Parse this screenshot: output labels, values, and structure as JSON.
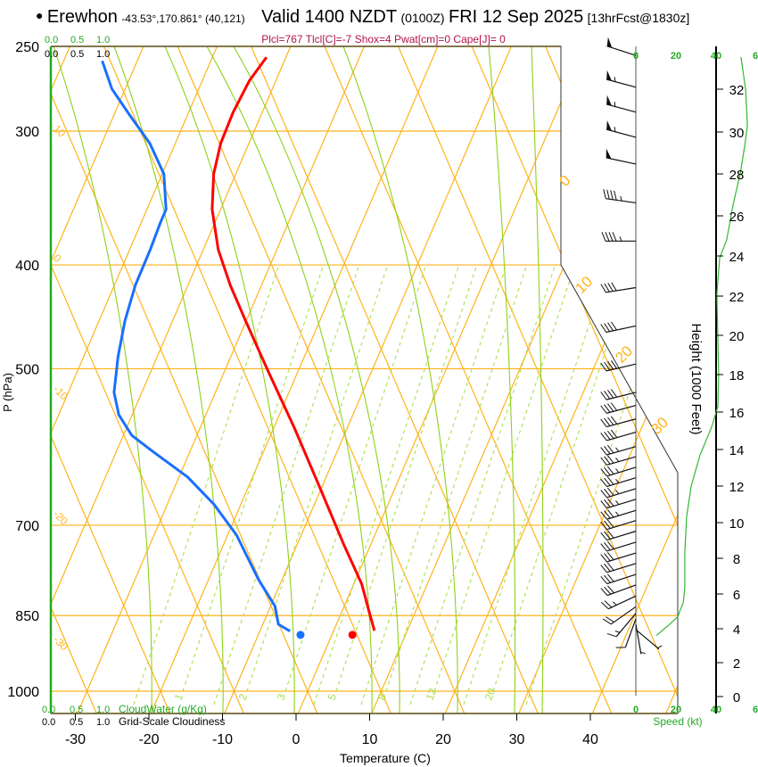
{
  "header": {
    "bullet": "●",
    "station": "Erewhon",
    "coords": "-43.53°,170.861° (40,121)",
    "valid": "Valid 1400 NZDT",
    "utc": "(0100Z)",
    "date": "FRI 12 Sep 2025",
    "forecast": "[13hrFcst@1830z]"
  },
  "stats": "Plcl=767 Tlcl[C]=-7 Shox=4 Pwat[cm]=0 Cape[J]= 0",
  "colors": {
    "temperature": "#ff0000",
    "dewpoint": "#1a6fff",
    "grid_orange": "#ffb31a",
    "moist_adiabat": "#8fd11a",
    "mixing_ratio": "#a8e04a",
    "speed": "#33b833",
    "stats": "#b0134e",
    "axis_green": "#22aa22"
  },
  "cloud_axis": {
    "water_ticks": [
      "0.0",
      "0.5",
      "1.0"
    ],
    "cloudiness_ticks": [
      "0.0",
      "0.5",
      "1.0"
    ],
    "water_label": "CloudWater (g/Kg)",
    "cloudiness_label": "Grid-Scale Cloudiness"
  },
  "chart_data": {
    "type": "line",
    "title": "Erewhon skew-T sounding, Valid 1400 NZDT FRI 12 Sep 2025",
    "xlabel": "Temperature (C)",
    "ylabel": "P (hPa)",
    "y2label": "Height (1000 Feet)",
    "speed_label": "Speed (kt)",
    "x_ticks": [
      "-30",
      "-20",
      "-10",
      "0",
      "10",
      "20",
      "30",
      "40"
    ],
    "x_tick_values": [
      -30,
      -20,
      -10,
      0,
      10,
      20,
      30,
      40
    ],
    "p_ticks": [
      "250",
      "300",
      "400",
      "500",
      "700",
      "850",
      "1000"
    ],
    "p_tick_values": [
      250,
      300,
      400,
      500,
      700,
      850,
      1000
    ],
    "ylim_hpa": [
      1050,
      250
    ],
    "height_ticks": [
      "0",
      "2",
      "4",
      "6",
      "8",
      "10",
      "12",
      "14",
      "16",
      "18",
      "20",
      "22",
      "24",
      "26",
      "28",
      "30",
      "32"
    ],
    "speed_ticks": [
      "0",
      "20",
      "40",
      "6"
    ],
    "isotherm_labels_left": [
      "10",
      "0",
      "-10",
      "-20",
      "-30"
    ],
    "theta_labels_right": [
      "0",
      "10",
      "20",
      "30"
    ],
    "mixing_ratio_labels": [
      "1",
      "2",
      "3",
      "5",
      "8",
      "12",
      "20"
    ],
    "series": [
      {
        "name": "temperature",
        "points_p_T": [
          [
            886,
            1.9
          ],
          [
            878,
            4.6
          ],
          [
            850,
            2.9
          ],
          [
            794,
            -0.6
          ],
          [
            729,
            -6.0
          ],
          [
            650,
            -13.0
          ],
          [
            568,
            -21.3
          ],
          [
            501,
            -29.3
          ],
          [
            451,
            -35.9
          ],
          [
            418,
            -40.6
          ],
          [
            387,
            -44.9
          ],
          [
            355,
            -48.7
          ],
          [
            329,
            -51.1
          ],
          [
            308,
            -52.4
          ],
          [
            288,
            -53.0
          ],
          [
            269,
            -53.1
          ],
          [
            256,
            -52.5
          ]
        ]
      },
      {
        "name": "dewpoint",
        "points_p_T": [
          [
            886,
            -5.2
          ],
          [
            879,
            -6.9
          ],
          [
            866,
            -9.0
          ],
          [
            833,
            -10.8
          ],
          [
            787,
            -15.0
          ],
          [
            715,
            -21.3
          ],
          [
            669,
            -26.7
          ],
          [
            631,
            -32.3
          ],
          [
            596,
            -39.2
          ],
          [
            577,
            -43.0
          ],
          [
            552,
            -46.3
          ],
          [
            526,
            -48.6
          ],
          [
            487,
            -50.7
          ],
          [
            451,
            -52.4
          ],
          [
            418,
            -53.6
          ],
          [
            387,
            -54.2
          ],
          [
            365,
            -54.8
          ],
          [
            355,
            -55.0
          ],
          [
            329,
            -57.9
          ],
          [
            308,
            -62.1
          ],
          [
            290,
            -66.9
          ],
          [
            274,
            -71.3
          ],
          [
            258,
            -74.7
          ]
        ]
      }
    ],
    "wind_speed_profile_kft_kt": [
      [
        33.5,
        52.4
      ],
      [
        32,
        54.7
      ],
      [
        30.3,
        55.6
      ],
      [
        29.3,
        54.2
      ],
      [
        28,
        52
      ],
      [
        26.5,
        48.4
      ],
      [
        24.8,
        45.3
      ],
      [
        23.9,
        41.8
      ],
      [
        22.1,
        40.4
      ],
      [
        19.8,
        40.9
      ],
      [
        18,
        41.3
      ],
      [
        16.3,
        40.9
      ],
      [
        15.2,
        37.8
      ],
      [
        13.7,
        32
      ],
      [
        12,
        27.6
      ],
      [
        10.3,
        25.3
      ],
      [
        8.3,
        24.4
      ],
      [
        6.3,
        24.4
      ],
      [
        5.5,
        23.6
      ],
      [
        4.7,
        20.9
      ],
      [
        4.3,
        17.3
      ],
      [
        4,
        14.2
      ],
      [
        3.6,
        10.2
      ]
    ],
    "wind_barbs": [
      {
        "p": 255,
        "dir": 288,
        "spd": 50
      },
      {
        "p": 273,
        "dir": 285,
        "spd": 55
      },
      {
        "p": 288,
        "dir": 285,
        "spd": 55
      },
      {
        "p": 304,
        "dir": 285,
        "spd": 55
      },
      {
        "p": 322,
        "dir": 282,
        "spd": 50
      },
      {
        "p": 350,
        "dir": 278,
        "spd": 45
      },
      {
        "p": 380,
        "dir": 270,
        "spd": 45
      },
      {
        "p": 420,
        "dir": 261,
        "spd": 40
      },
      {
        "p": 456,
        "dir": 258,
        "spd": 40
      },
      {
        "p": 495,
        "dir": 257,
        "spd": 40
      },
      {
        "p": 526,
        "dir": 256,
        "spd": 40
      },
      {
        "p": 541,
        "dir": 255,
        "spd": 40
      },
      {
        "p": 557,
        "dir": 255,
        "spd": 40
      },
      {
        "p": 573,
        "dir": 254,
        "spd": 40
      },
      {
        "p": 591,
        "dir": 254,
        "spd": 35
      },
      {
        "p": 604,
        "dir": 254,
        "spd": 35
      },
      {
        "p": 618,
        "dir": 253,
        "spd": 35
      },
      {
        "p": 632,
        "dir": 253,
        "spd": 35
      },
      {
        "p": 647,
        "dir": 253,
        "spd": 35
      },
      {
        "p": 662,
        "dir": 253,
        "spd": 35
      },
      {
        "p": 678,
        "dir": 253,
        "spd": 35
      },
      {
        "p": 693,
        "dir": 253,
        "spd": 30
      },
      {
        "p": 709,
        "dir": 253,
        "spd": 30
      },
      {
        "p": 726,
        "dir": 253,
        "spd": 30
      },
      {
        "p": 743,
        "dir": 253,
        "spd": 30
      },
      {
        "p": 760,
        "dir": 253,
        "spd": 30
      },
      {
        "p": 778,
        "dir": 252,
        "spd": 30
      },
      {
        "p": 796,
        "dir": 250,
        "spd": 30
      },
      {
        "p": 815,
        "dir": 245,
        "spd": 25
      },
      {
        "p": 834,
        "dir": 235,
        "spd": 20
      },
      {
        "p": 846,
        "dir": 220,
        "spd": 15
      },
      {
        "p": 856,
        "dir": 200,
        "spd": 10
      },
      {
        "p": 866,
        "dir": 170,
        "spd": 5
      },
      {
        "p": 876,
        "dir": 130,
        "spd": 5
      }
    ]
  }
}
